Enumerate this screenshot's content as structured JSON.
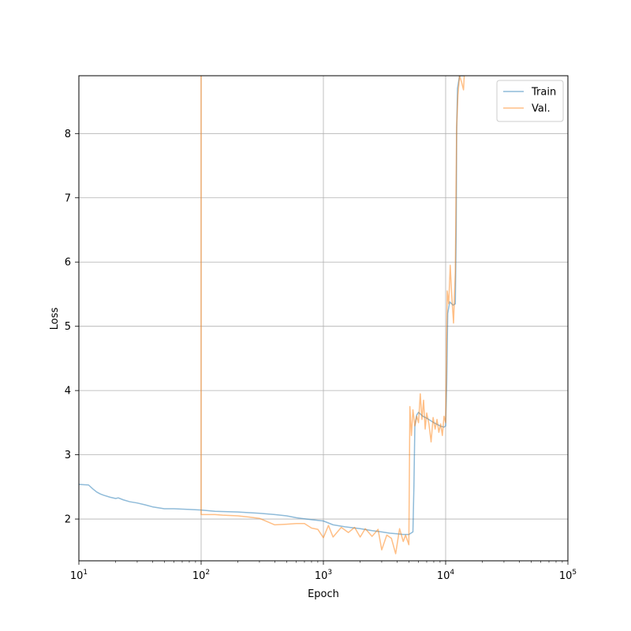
{
  "chart_data": {
    "type": "line",
    "title": "",
    "xlabel": "Epoch",
    "ylabel": "Loss",
    "xscale": "log",
    "xlim": [
      10,
      100000
    ],
    "ylim": [
      1.35,
      8.9
    ],
    "grid": true,
    "legend_position": "top-right",
    "x_ticks": [
      {
        "value": 10,
        "base": "10",
        "exp": "1"
      },
      {
        "value": 100,
        "base": "10",
        "exp": "2"
      },
      {
        "value": 1000,
        "base": "10",
        "exp": "3"
      },
      {
        "value": 10000,
        "base": "10",
        "exp": "4"
      },
      {
        "value": 100000,
        "base": "10",
        "exp": "5"
      }
    ],
    "y_ticks": [
      {
        "value": 2,
        "label": "2"
      },
      {
        "value": 3,
        "label": "3"
      },
      {
        "value": 4,
        "label": "4"
      },
      {
        "value": 5,
        "label": "5"
      },
      {
        "value": 6,
        "label": "6"
      },
      {
        "value": 7,
        "label": "7"
      },
      {
        "value": 8,
        "label": "8"
      }
    ],
    "series": [
      {
        "name": "Train",
        "color": "#1f77b4",
        "points": [
          [
            10,
            2.54
          ],
          [
            12,
            2.53
          ],
          [
            13,
            2.47
          ],
          [
            14,
            2.42
          ],
          [
            15,
            2.39
          ],
          [
            16,
            2.37
          ],
          [
            18,
            2.34
          ],
          [
            20,
            2.32
          ],
          [
            21,
            2.33
          ],
          [
            23,
            2.3
          ],
          [
            26,
            2.27
          ],
          [
            30,
            2.25
          ],
          [
            35,
            2.22
          ],
          [
            40,
            2.19
          ],
          [
            50,
            2.16
          ],
          [
            60,
            2.16
          ],
          [
            80,
            2.15
          ],
          [
            100,
            2.14
          ],
          [
            130,
            2.12
          ],
          [
            200,
            2.11
          ],
          [
            300,
            2.09
          ],
          [
            400,
            2.07
          ],
          [
            500,
            2.05
          ],
          [
            600,
            2.02
          ],
          [
            800,
            1.99
          ],
          [
            1000,
            1.97
          ],
          [
            1200,
            1.91
          ],
          [
            1500,
            1.88
          ],
          [
            2000,
            1.85
          ],
          [
            2500,
            1.82
          ],
          [
            3000,
            1.8
          ],
          [
            3500,
            1.78
          ],
          [
            4000,
            1.77
          ],
          [
            4500,
            1.76
          ],
          [
            5000,
            1.76
          ],
          [
            5400,
            1.8
          ],
          [
            5500,
            2.5
          ],
          [
            5600,
            3.45
          ],
          [
            5800,
            3.62
          ],
          [
            6000,
            3.66
          ],
          [
            6500,
            3.6
          ],
          [
            7000,
            3.57
          ],
          [
            8000,
            3.5
          ],
          [
            9000,
            3.45
          ],
          [
            9700,
            3.43
          ],
          [
            10000,
            3.45
          ],
          [
            10200,
            4.1
          ],
          [
            10400,
            5.2
          ],
          [
            10800,
            5.38
          ],
          [
            11500,
            5.33
          ],
          [
            12000,
            5.35
          ],
          [
            12200,
            6.5
          ],
          [
            12300,
            8.0
          ],
          [
            12500,
            8.7
          ],
          [
            13000,
            8.9
          ],
          [
            14000,
            8.9
          ]
        ]
      },
      {
        "name": "Val.",
        "color": "#ff7f0e",
        "points": [
          [
            100,
            8.9
          ],
          [
            100,
            2.07
          ],
          [
            130,
            2.07
          ],
          [
            150,
            2.06
          ],
          [
            200,
            2.05
          ],
          [
            250,
            2.03
          ],
          [
            300,
            2.01
          ],
          [
            400,
            1.91
          ],
          [
            500,
            1.92
          ],
          [
            600,
            1.93
          ],
          [
            700,
            1.93
          ],
          [
            800,
            1.86
          ],
          [
            900,
            1.84
          ],
          [
            1000,
            1.71
          ],
          [
            1100,
            1.9
          ],
          [
            1200,
            1.72
          ],
          [
            1400,
            1.87
          ],
          [
            1600,
            1.79
          ],
          [
            1800,
            1.87
          ],
          [
            2000,
            1.72
          ],
          [
            2200,
            1.85
          ],
          [
            2500,
            1.73
          ],
          [
            2800,
            1.84
          ],
          [
            3000,
            1.52
          ],
          [
            3300,
            1.75
          ],
          [
            3600,
            1.7
          ],
          [
            3900,
            1.46
          ],
          [
            4200,
            1.85
          ],
          [
            4500,
            1.65
          ],
          [
            4700,
            1.75
          ],
          [
            5000,
            1.6
          ],
          [
            5100,
            3.75
          ],
          [
            5250,
            3.3
          ],
          [
            5400,
            3.7
          ],
          [
            5600,
            3.45
          ],
          [
            5800,
            3.6
          ],
          [
            6000,
            3.5
          ],
          [
            6200,
            3.95
          ],
          [
            6400,
            3.55
          ],
          [
            6600,
            3.85
          ],
          [
            6800,
            3.4
          ],
          [
            7000,
            3.65
          ],
          [
            7300,
            3.48
          ],
          [
            7600,
            3.2
          ],
          [
            7900,
            3.58
          ],
          [
            8200,
            3.4
          ],
          [
            8500,
            3.55
          ],
          [
            8800,
            3.35
          ],
          [
            9100,
            3.48
          ],
          [
            9400,
            3.3
          ],
          [
            9700,
            3.6
          ],
          [
            10000,
            3.5
          ],
          [
            10300,
            5.55
          ],
          [
            10600,
            5.35
          ],
          [
            10900,
            5.95
          ],
          [
            11200,
            5.5
          ],
          [
            11600,
            5.05
          ],
          [
            12000,
            5.85
          ],
          [
            12300,
            8.1
          ],
          [
            12600,
            8.6
          ],
          [
            13000,
            8.9
          ],
          [
            13500,
            8.8
          ],
          [
            14000,
            8.68
          ],
          [
            14200,
            8.9
          ]
        ]
      }
    ]
  }
}
